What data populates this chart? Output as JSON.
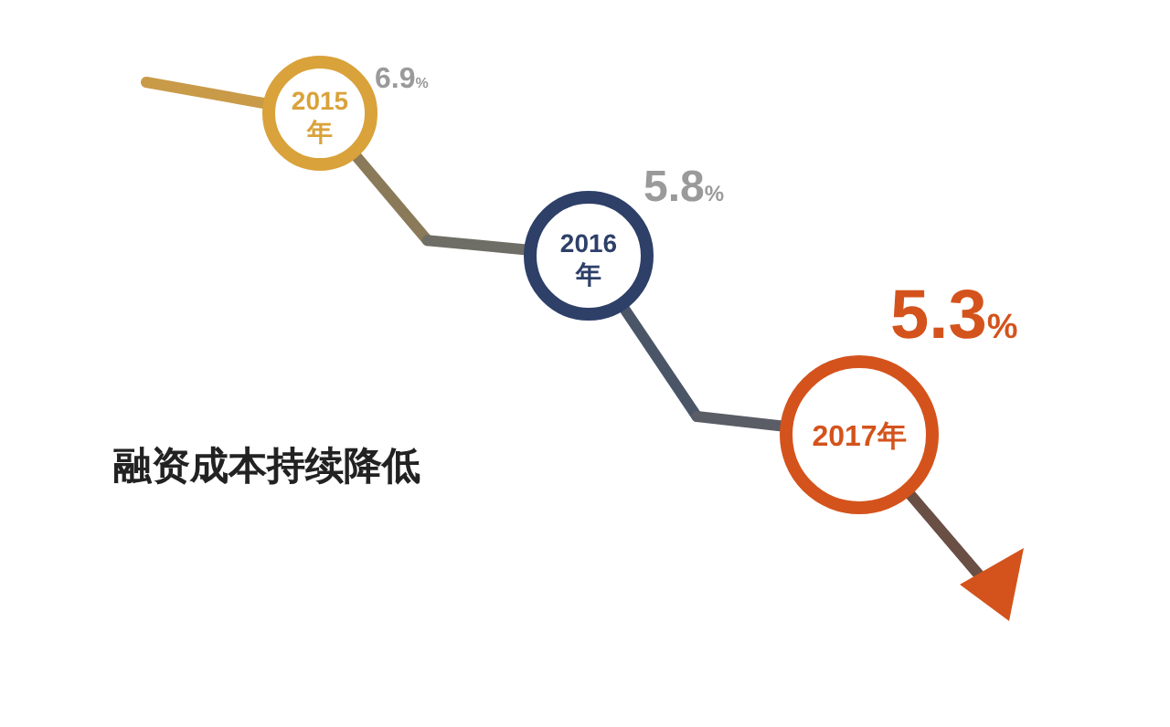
{
  "chart_data": {
    "type": "other",
    "categories": [
      "2015年",
      "2016年",
      "2017年"
    ],
    "values": [
      6.9,
      5.8,
      5.3
    ],
    "value_labels": [
      "6.9%",
      "5.8%",
      "5.3%"
    ],
    "colors": [
      "#d9a23a",
      "#2e4068",
      "#d4531c"
    ],
    "annotations": [
      "融资成本持续降低"
    ]
  }
}
